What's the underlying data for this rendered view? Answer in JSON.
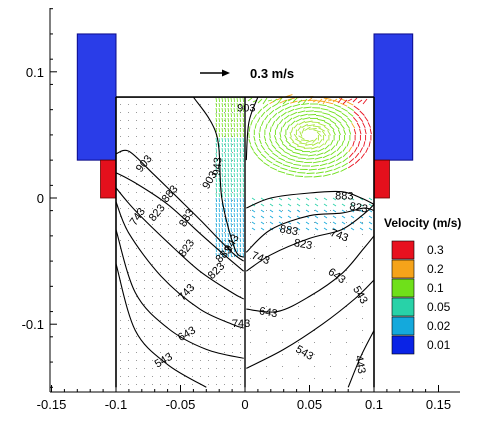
{
  "chart_data": {
    "type": "contour",
    "xlim": [
      -0.15,
      0.15
    ],
    "ylim": [
      -0.15,
      0.15
    ],
    "x_ticks": [
      {
        "value": -0.15,
        "label": "-0.15"
      },
      {
        "value": -0.1,
        "label": "-0.1"
      },
      {
        "value": -0.05,
        "label": "-0.05"
      },
      {
        "value": 0,
        "label": "0"
      },
      {
        "value": 0.05,
        "label": "0.05"
      },
      {
        "value": 0.1,
        "label": "0.1"
      },
      {
        "value": 0.15,
        "label": "0.15"
      }
    ],
    "y_ticks": [
      {
        "value": 0.1,
        "label": "0.1"
      },
      {
        "value": 0,
        "label": "0"
      },
      {
        "value": -0.1,
        "label": "-0.1"
      }
    ],
    "grid": false,
    "reference_vector_label": "0.3 m/s",
    "legend": {
      "title": "Velocity (m/s)",
      "placement": "right",
      "entries": [
        {
          "label": "0.3",
          "color": "#e8111f"
        },
        {
          "label": "0.2",
          "color": "#f5a31a"
        },
        {
          "label": "0.1",
          "color": "#6fe01a"
        },
        {
          "label": "0.05",
          "color": "#28d2a8"
        },
        {
          "label": "0.02",
          "color": "#14a9dc"
        },
        {
          "label": "0.01",
          "color": "#0a23e6"
        }
      ]
    },
    "colors": {
      "coil": "#2a3de8",
      "coil_edge": "#0a0a8a",
      "heater": "#e4101c",
      "wall": "#000000",
      "contour": "#000000"
    },
    "left_half_contours": [
      {
        "label": "943",
        "points": [
          [
            -0.04,
            0.08
          ],
          [
            -0.022,
            0.05
          ],
          [
            -0.018,
            0.0
          ],
          [
            -0.008,
            -0.04
          ],
          [
            -0.001,
            -0.047
          ]
        ]
      },
      {
        "label": "903",
        "points": [
          [
            -0.1,
            0.035
          ],
          [
            -0.09,
            0.037
          ],
          [
            -0.072,
            0.02
          ],
          [
            -0.055,
            0.003
          ],
          [
            -0.035,
            -0.017
          ],
          [
            -0.02,
            -0.033
          ],
          [
            -0.008,
            -0.045
          ],
          [
            -0.001,
            -0.05
          ]
        ]
      },
      {
        "label": "883",
        "points": [
          [
            -0.1,
            0.02
          ],
          [
            -0.085,
            0.012
          ],
          [
            -0.06,
            -0.005
          ],
          [
            -0.035,
            -0.028
          ],
          [
            -0.015,
            -0.046
          ],
          [
            -0.001,
            -0.058
          ]
        ]
      },
      {
        "label": "823",
        "points": [
          [
            -0.1,
            0.008
          ],
          [
            -0.085,
            -0.01
          ],
          [
            -0.06,
            -0.035
          ],
          [
            -0.035,
            -0.058
          ],
          [
            -0.01,
            -0.075
          ],
          [
            -0.001,
            -0.08
          ]
        ]
      },
      {
        "label": "743",
        "points": [
          [
            -0.1,
            -0.003
          ],
          [
            -0.09,
            -0.028
          ],
          [
            -0.065,
            -0.062
          ],
          [
            -0.035,
            -0.088
          ],
          [
            -0.01,
            -0.1
          ],
          [
            -0.001,
            -0.103
          ]
        ]
      },
      {
        "label": "643",
        "points": [
          [
            -0.1,
            -0.025
          ],
          [
            -0.085,
            -0.075
          ],
          [
            -0.06,
            -0.103
          ],
          [
            -0.03,
            -0.12
          ],
          [
            -0.001,
            -0.127
          ]
        ]
      },
      {
        "label": "543",
        "points": [
          [
            -0.1,
            -0.052
          ],
          [
            -0.085,
            -0.105
          ],
          [
            -0.06,
            -0.132
          ],
          [
            -0.03,
            -0.15
          ]
        ]
      }
    ],
    "right_half_contours": [
      {
        "label": "903",
        "points": [
          [
            0.001,
            0.03
          ],
          [
            0.003,
            0.06
          ],
          [
            0.01,
            0.08
          ]
        ]
      },
      {
        "label": "883",
        "points": [
          [
            0.001,
            -0.008
          ],
          [
            0.02,
            0.0
          ],
          [
            0.05,
            0.004
          ],
          [
            0.075,
            0.005
          ],
          [
            0.09,
            0.0
          ],
          [
            0.1,
            -0.005
          ]
        ]
      },
      {
        "label": "823",
        "points": [
          [
            0.001,
            -0.043
          ],
          [
            0.02,
            -0.025
          ],
          [
            0.05,
            -0.014
          ],
          [
            0.075,
            -0.012
          ],
          [
            0.092,
            -0.008
          ],
          [
            0.1,
            -0.01
          ]
        ]
      },
      {
        "label": "743",
        "points": [
          [
            0.001,
            -0.058
          ],
          [
            0.02,
            -0.045
          ],
          [
            0.05,
            -0.032
          ],
          [
            0.075,
            -0.025
          ],
          [
            0.093,
            -0.012
          ],
          [
            0.1,
            -0.005
          ]
        ]
      },
      {
        "label": "643",
        "points": [
          [
            0.001,
            -0.088
          ],
          [
            0.025,
            -0.09
          ],
          [
            0.05,
            -0.078
          ],
          [
            0.075,
            -0.06
          ],
          [
            0.092,
            -0.04
          ],
          [
            0.1,
            -0.03
          ]
        ]
      },
      {
        "label": "543",
        "points": [
          [
            0.001,
            -0.135
          ],
          [
            0.03,
            -0.12
          ],
          [
            0.06,
            -0.1
          ],
          [
            0.085,
            -0.08
          ],
          [
            0.1,
            -0.065
          ]
        ]
      },
      {
        "label": "443",
        "points": [
          [
            0.08,
            -0.15
          ],
          [
            0.09,
            -0.125
          ],
          [
            0.1,
            -0.105
          ]
        ]
      }
    ],
    "annotations": [
      {
        "text": "903",
        "x": -0.027,
        "y": 0.014,
        "angle": -60
      },
      {
        "text": "883",
        "x": -0.045,
        "y": -0.016,
        "angle": -60
      },
      {
        "text": "823",
        "x": -0.045,
        "y": -0.04,
        "angle": -55
      },
      {
        "text": "743",
        "x": -0.045,
        "y": -0.075,
        "angle": -48
      },
      {
        "text": "643",
        "x": -0.045,
        "y": -0.108,
        "angle": -30
      },
      {
        "text": "543",
        "x": -0.063,
        "y": -0.129,
        "angle": -30
      },
      {
        "text": "903",
        "x": -0.078,
        "y": 0.027,
        "angle": -50
      },
      {
        "text": "883",
        "x": -0.058,
        "y": 0.003,
        "angle": -50
      },
      {
        "text": "823",
        "x": -0.068,
        "y": -0.012,
        "angle": -50
      },
      {
        "text": "743",
        "x": -0.083,
        "y": -0.015,
        "angle": -55
      },
      {
        "text": "823",
        "x": -0.022,
        "y": -0.058,
        "angle": -45
      },
      {
        "text": "883",
        "x": -0.016,
        "y": -0.045,
        "angle": -45
      },
      {
        "text": "943",
        "x": -0.021,
        "y": 0.025,
        "angle": -85
      },
      {
        "text": "943",
        "x": -0.01,
        "y": -0.036,
        "angle": -60
      },
      {
        "text": "903",
        "x": 0.001,
        "y": 0.071,
        "angle": 0
      },
      {
        "text": "883",
        "x": 0.077,
        "y": 0.001,
        "angle": 0
      },
      {
        "text": "883",
        "x": 0.034,
        "y": -0.026,
        "angle": 10
      },
      {
        "text": "823",
        "x": 0.045,
        "y": -0.037,
        "angle": 10
      },
      {
        "text": "823",
        "x": 0.088,
        "y": -0.008,
        "angle": 10
      },
      {
        "text": "743",
        "x": 0.073,
        "y": -0.03,
        "angle": 20
      },
      {
        "text": "743",
        "x": 0.012,
        "y": -0.048,
        "angle": 20
      },
      {
        "text": "643",
        "x": 0.071,
        "y": -0.062,
        "angle": 35
      },
      {
        "text": "643",
        "x": 0.018,
        "y": -0.091,
        "angle": 10
      },
      {
        "text": "543",
        "x": 0.046,
        "y": -0.123,
        "angle": 30
      },
      {
        "text": "543",
        "x": 0.089,
        "y": -0.077,
        "angle": 60
      },
      {
        "text": "443",
        "x": 0.089,
        "y": -0.132,
        "angle": 80
      },
      {
        "text": "743",
        "x": -0.003,
        "y": -0.1,
        "angle": 0
      }
    ]
  }
}
